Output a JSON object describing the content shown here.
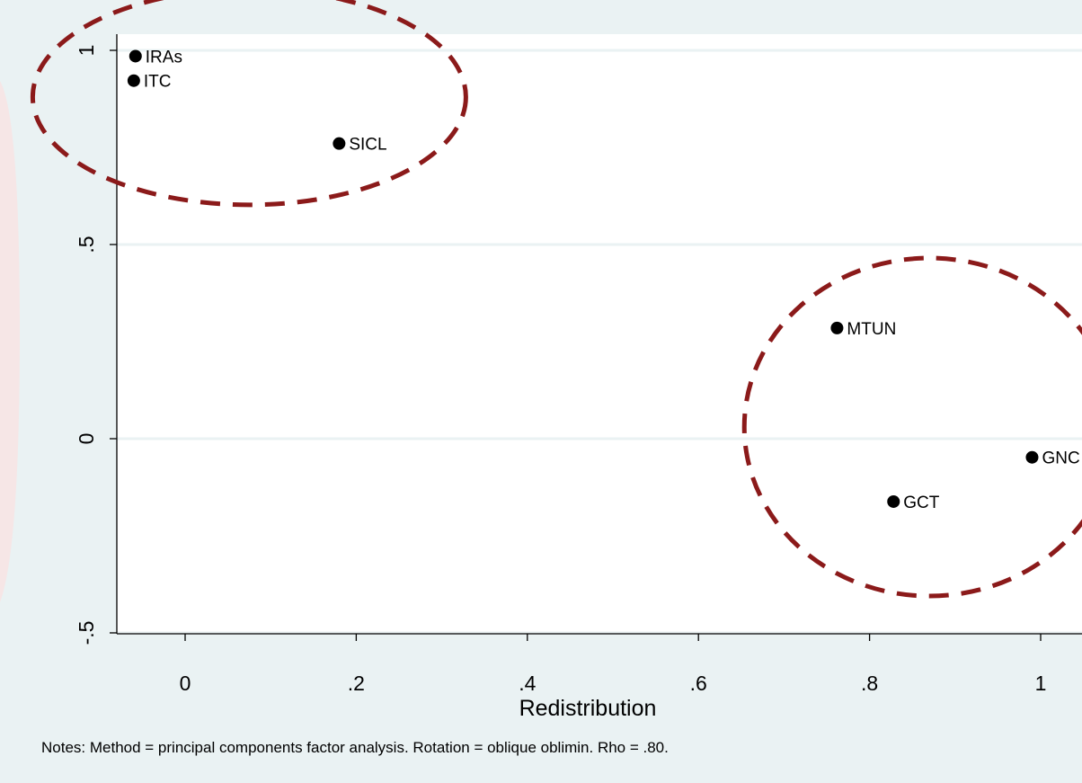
{
  "chart_data": {
    "type": "scatter",
    "title": "",
    "xlabel": "Redistribution",
    "ylabel": "",
    "xlim": [
      -0.08,
      1.0
    ],
    "ylim": [
      -0.55,
      1.0
    ],
    "xticks": [
      {
        "value": 0,
        "label": "0"
      },
      {
        "value": 0.2,
        "label": ".2"
      },
      {
        "value": 0.4,
        "label": ".4"
      },
      {
        "value": 0.6,
        "label": ".6"
      },
      {
        "value": 0.8,
        "label": ".8"
      },
      {
        "value": 1.0,
        "label": "1"
      }
    ],
    "yticks": [
      {
        "value": -0.5,
        "label": "-.5"
      },
      {
        "value": 0,
        "label": "0"
      },
      {
        "value": 0.5,
        "label": ".5"
      },
      {
        "value": 1.0,
        "label": "1"
      }
    ],
    "grid": true,
    "points": [
      {
        "label": "IRAs",
        "x": -0.058,
        "y": 0.985
      },
      {
        "label": "ITC",
        "x": -0.06,
        "y": 0.922
      },
      {
        "label": "SICL",
        "x": 0.18,
        "y": 0.76
      },
      {
        "label": "MTUN",
        "x": 0.762,
        "y": 0.285
      },
      {
        "label": "GNC",
        "x": 0.99,
        "y": -0.048
      },
      {
        "label": "GCT",
        "x": 0.828,
        "y": -0.162
      }
    ],
    "clusters": [
      {
        "cx": 0.075,
        "cy": 0.88
      },
      {
        "cx": 0.87,
        "cy": 0.03
      }
    ],
    "notes": "Notes: Method = principal components factor analysis. Rotation = oblique oblimin. Rho = .80."
  },
  "colors": {
    "outer_background": "#eaf2f3",
    "plot_background": "#ffffff",
    "gridline": "#eaf2f3",
    "point": "#000000",
    "cluster_outline": "#8b1a1a",
    "left_tint": "#f6e6e6"
  }
}
